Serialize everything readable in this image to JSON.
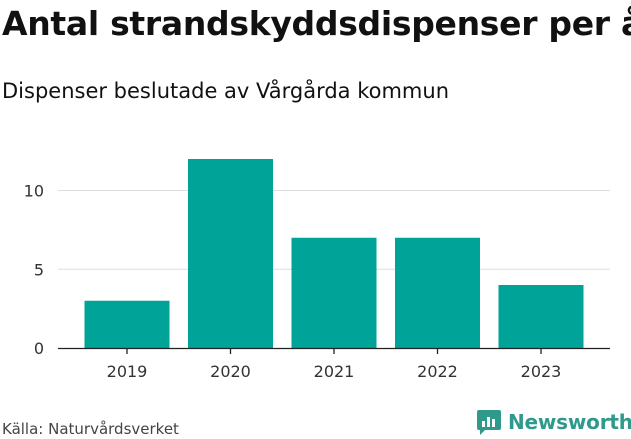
{
  "title": "Antal strandskyddsdispenser per år",
  "subtitle": "Dispenser beslutade av Vårgårda kommun",
  "source": "Källa: Naturvårdsverket",
  "brand": {
    "name": "Newsworthy",
    "icon": "newsworthy-logo-icon",
    "color": "#2f9a8c"
  },
  "chart_data": {
    "type": "bar",
    "categories": [
      "2019",
      "2020",
      "2021",
      "2022",
      "2023"
    ],
    "values": [
      3,
      12,
      7,
      7,
      4
    ],
    "ylim": [
      0,
      12
    ],
    "yticks": [
      "0",
      "5",
      "10"
    ],
    "grid": true,
    "bar_color": "#00a398",
    "xlabel": "",
    "ylabel": ""
  }
}
